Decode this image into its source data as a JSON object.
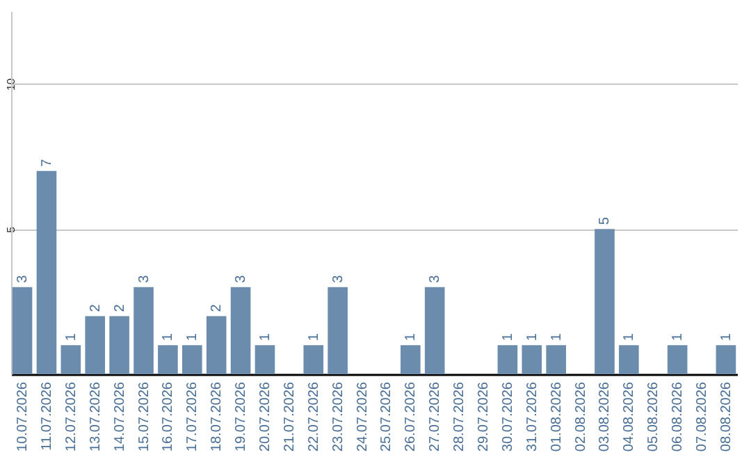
{
  "chart_data": {
    "type": "bar",
    "categories": [
      "10.07.2026",
      "11.07.2026",
      "12.07.2026",
      "13.07.2026",
      "14.07.2026",
      "15.07.2026",
      "16.07.2026",
      "17.07.2026",
      "18.07.2026",
      "19.07.2026",
      "20.07.2026",
      "21.07.2026",
      "22.07.2026",
      "23.07.2026",
      "24.07.2026",
      "25.07.2026",
      "26.07.2026",
      "27.07.2026",
      "28.07.2026",
      "29.07.2026",
      "30.07.2026",
      "31.07.2026",
      "01.08.2026",
      "02.08.2026",
      "03.08.2026",
      "04.08.2026",
      "05.08.2026",
      "06.08.2026",
      "07.08.2026",
      "08.08.2026"
    ],
    "values": [
      3,
      7,
      1,
      2,
      2,
      3,
      1,
      1,
      2,
      3,
      1,
      null,
      1,
      3,
      null,
      null,
      1,
      3,
      null,
      null,
      1,
      1,
      1,
      null,
      5,
      1,
      null,
      1,
      null,
      1
    ],
    "color": "#6b8cad",
    "data_labels": true,
    "ylim": [
      0,
      12.5
    ],
    "yticks": [
      5,
      10
    ],
    "grid": "y"
  }
}
